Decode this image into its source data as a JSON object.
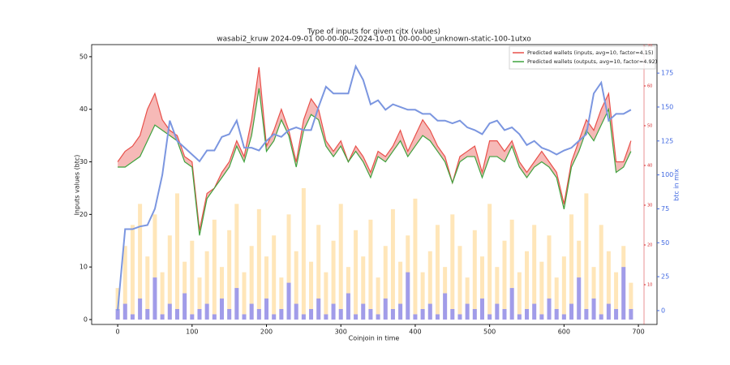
{
  "chart_data": {
    "type": "line",
    "title": "Type of inputs for given cjtx (values)",
    "subtitle": "wasabi2_kruw 2024-09-01 00-00-00--2024-10-01 00-00-00_unknown-static-100-1utxo",
    "x_label": "Coinjoin in time",
    "y_label": "Inputs values (btc)",
    "y2_label": "btc in mix",
    "x": [
      0,
      10,
      20,
      30,
      40,
      50,
      60,
      70,
      80,
      90,
      100,
      110,
      120,
      130,
      140,
      150,
      160,
      170,
      180,
      190,
      200,
      210,
      220,
      230,
      240,
      250,
      260,
      270,
      280,
      290,
      300,
      310,
      320,
      330,
      340,
      350,
      360,
      370,
      380,
      390,
      400,
      410,
      420,
      430,
      440,
      450,
      460,
      470,
      480,
      490,
      500,
      510,
      520,
      530,
      540,
      550,
      560,
      570,
      580,
      590,
      600,
      610,
      620,
      630,
      640,
      650,
      660,
      670,
      680,
      690
    ],
    "xlim": [
      -35,
      725
    ],
    "xticks": [
      0,
      100,
      200,
      300,
      400,
      500,
      600,
      700
    ],
    "ylim": [
      -0.93,
      52.3
    ],
    "yticks": [
      0,
      10,
      20,
      30,
      40,
      50
    ],
    "y2lim": [
      -10.2,
      196
    ],
    "y2ticks": [
      0,
      25,
      50,
      75,
      100,
      125,
      150,
      175
    ],
    "y3lim": [
      0,
      70.4
    ],
    "y3ticks": [
      10,
      20,
      30,
      40,
      50,
      60,
      70
    ],
    "y3color": "#d62728",
    "legend": "upper right",
    "series": [
      {
        "name": "Predicted wallets (inputs, avg=10, factor=4.15)",
        "color": "#e8504a",
        "values": [
          30,
          32,
          33,
          35,
          40,
          43,
          38,
          36,
          35,
          31,
          30,
          17,
          24,
          25,
          28,
          30,
          34,
          31,
          38,
          48,
          33,
          36,
          40,
          36,
          30,
          38,
          42,
          40,
          34,
          32,
          34,
          30,
          33,
          31,
          28,
          32,
          31,
          33,
          36,
          32,
          35,
          38,
          36,
          33,
          31,
          26,
          31,
          32,
          33,
          28,
          34,
          34,
          32,
          34,
          30,
          28,
          30,
          32,
          30,
          28,
          22,
          30,
          34,
          38,
          36,
          40,
          43,
          30,
          30,
          34
        ]
      },
      {
        "name": "Predicted wallets (outputs, avg=10, factor=4.92)",
        "color": "#3fa33f",
        "values": [
          29,
          29,
          30,
          31,
          34,
          37,
          36,
          35,
          34,
          30,
          29,
          16,
          23,
          25,
          27,
          29,
          33,
          30,
          35,
          44,
          32,
          34,
          38,
          35,
          29,
          36,
          39,
          38,
          33,
          31,
          33,
          30,
          32,
          30,
          27,
          31,
          30,
          32,
          34,
          31,
          33,
          35,
          34,
          32,
          30,
          26,
          30,
          31,
          31,
          27,
          31,
          31,
          30,
          33,
          29,
          27,
          29,
          30,
          29,
          27,
          21,
          29,
          32,
          36,
          34,
          37,
          40,
          28,
          29,
          32
        ]
      },
      {
        "color": "#7b96e0",
        "axis": "y2",
        "values": [
          0,
          60,
          60,
          62,
          63,
          75,
          100,
          140,
          125,
          120,
          115,
          110,
          118,
          118,
          128,
          130,
          140,
          120,
          120,
          118,
          125,
          130,
          128,
          133,
          135,
          133,
          133,
          150,
          165,
          160,
          160,
          160,
          180,
          170,
          152,
          155,
          148,
          152,
          150,
          148,
          148,
          145,
          145,
          140,
          140,
          138,
          140,
          135,
          133,
          130,
          138,
          140,
          133,
          135,
          130,
          122,
          125,
          120,
          118,
          115,
          118,
          120,
          125,
          130,
          160,
          168,
          140,
          145,
          145,
          148
        ]
      }
    ],
    "bars": [
      {
        "color": "#ffd27f",
        "values": [
          6,
          14,
          18,
          22,
          12,
          20,
          9,
          16,
          24,
          11,
          15,
          8,
          13,
          19,
          10,
          17,
          22,
          9,
          14,
          21,
          12,
          16,
          8,
          20,
          13,
          25,
          11,
          18,
          9,
          15,
          22,
          10,
          17,
          12,
          19,
          8,
          14,
          21,
          11,
          16,
          23,
          9,
          13,
          18,
          10,
          20,
          14,
          8,
          17,
          12,
          22,
          10,
          15,
          19,
          9,
          13,
          18,
          11,
          16,
          8,
          12,
          20,
          15,
          24,
          10,
          18,
          13,
          9,
          14,
          7
        ]
      },
      {
        "color": "#8a8af5",
        "values": [
          2,
          3,
          1,
          4,
          2,
          8,
          1,
          3,
          2,
          5,
          1,
          2,
          3,
          1,
          4,
          2,
          6,
          1,
          3,
          2,
          4,
          1,
          2,
          7,
          3,
          1,
          2,
          4,
          1,
          3,
          2,
          5,
          1,
          3,
          2,
          1,
          4,
          2,
          3,
          9,
          1,
          2,
          3,
          1,
          5,
          2,
          1,
          3,
          2,
          4,
          1,
          3,
          2,
          6,
          1,
          2,
          3,
          1,
          4,
          2,
          1,
          3,
          8,
          2,
          4,
          1,
          3,
          2,
          10,
          2
        ]
      }
    ]
  }
}
